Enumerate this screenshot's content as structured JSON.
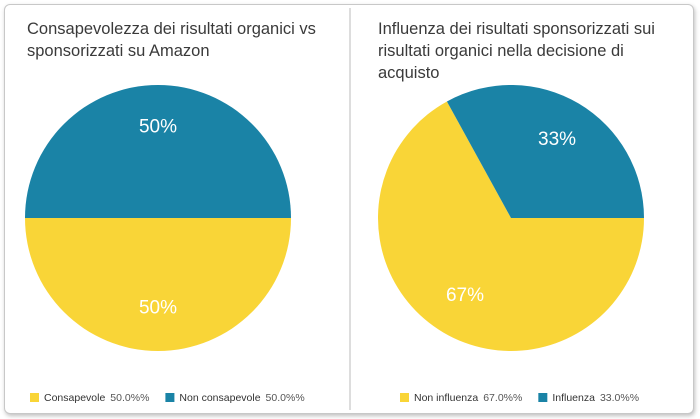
{
  "chart_data": [
    {
      "type": "pie",
      "title": "Consapevolezza dei risultati organici vs sponsorizzati su Amazon",
      "series": [
        {
          "name": "Consapevole",
          "color": "#f9d537",
          "value": 50,
          "value_label": "50%",
          "legend_value_label": "50.0%%"
        },
        {
          "name": "Non consapevole",
          "color": "#1a83a6",
          "value": 50,
          "value_label": "50%",
          "legend_value_label": "50.0%%"
        }
      ]
    },
    {
      "type": "pie",
      "title": "Influenza dei risultati sponsorizzati sui risultati organici nella decisione di acquisto",
      "series": [
        {
          "name": "Non influenza",
          "color": "#f9d537",
          "value": 67,
          "value_label": "67%",
          "legend_value_label": "67.0%%"
        },
        {
          "name": "Influenza",
          "color": "#1a83a6",
          "value": 33,
          "value_label": "33%",
          "legend_value_label": "33.0%%"
        }
      ]
    }
  ]
}
